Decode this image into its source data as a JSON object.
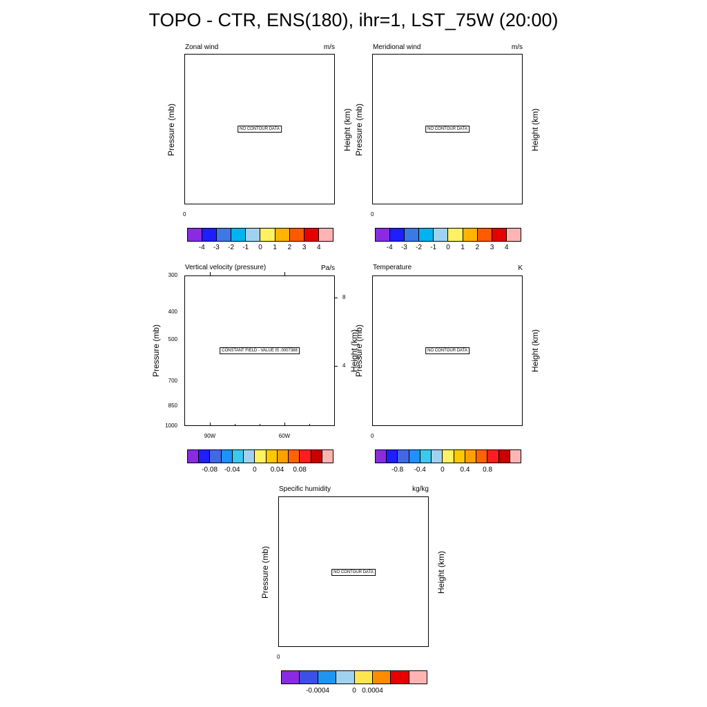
{
  "figure_title": "TOPO - CTR, ENS(180), ihr=1, LST_75W (20:00)",
  "panels": [
    {
      "title": "Zonal wind",
      "units": "m/s",
      "left_label": "Pressure (mb)",
      "right_label": "Height (km)",
      "message": "NO CONTOUR DATA",
      "x_tick": "0",
      "colorbar": {
        "colors": [
          "#8a2be2",
          "#1e1eff",
          "#3c78e6",
          "#00b4f0",
          "#a0d2f0",
          "#fff064",
          "#ffb400",
          "#ff5a00",
          "#e60000",
          "#ffb4b4"
        ],
        "labels": [
          "-4",
          "-3",
          "-2",
          "-1",
          "0",
          "1",
          "2",
          "3",
          "4"
        ]
      }
    },
    {
      "title": "Meridional wind",
      "units": "m/s",
      "left_label": "Pressure (mb)",
      "right_label": "Height (km)",
      "message": "NO CONTOUR DATA",
      "x_tick": "0",
      "colorbar": {
        "colors": [
          "#8a2be2",
          "#1e1eff",
          "#3c78e6",
          "#00b4f0",
          "#a0d2f0",
          "#fff064",
          "#ffb400",
          "#ff5a00",
          "#e60000",
          "#ffb4b4"
        ],
        "labels": [
          "-4",
          "-3",
          "-2",
          "-1",
          "0",
          "1",
          "2",
          "3",
          "4"
        ]
      }
    },
    {
      "title": "Vertical velocity (pressure)",
      "units": "Pa/s",
      "left_label": "Pressure (mb)",
      "right_label": "Height (km)",
      "message": "CONSTANT FIELD - VALUE IS .0007388",
      "y_ticks": [
        "300",
        "400",
        "500",
        "700",
        "850",
        "1000"
      ],
      "x_ticks": [
        "90W",
        "60W"
      ],
      "right_ticks": [
        "8",
        "4"
      ],
      "colorbar": {
        "colors": [
          "#8a2be2",
          "#1e1eff",
          "#4169e1",
          "#1e90ff",
          "#3cc8f0",
          "#a0d2f0",
          "#fff064",
          "#ffc800",
          "#ffa000",
          "#ff6400",
          "#ff1e1e",
          "#c80000",
          "#ffb4b4"
        ],
        "labels": [
          "-0.08",
          "-0.04",
          "0",
          "0.04",
          "0.08"
        ]
      }
    },
    {
      "title": "Temperature",
      "units": "K",
      "left_label": "Pressure (mb)",
      "right_label": "Height (km)",
      "message": "NO CONTOUR DATA",
      "x_tick": "0",
      "colorbar": {
        "colors": [
          "#8a2be2",
          "#1e1eff",
          "#4169e1",
          "#1e90ff",
          "#3cc8f0",
          "#a0d2f0",
          "#fff064",
          "#ffc800",
          "#ffa000",
          "#ff6400",
          "#ff1e1e",
          "#c80000",
          "#ffb4b4"
        ],
        "labels": [
          "-0.8",
          "-0.4",
          "0",
          "0.4",
          "0.8"
        ]
      }
    },
    {
      "title": "Specific humidity",
      "units": "kg/kg",
      "left_label": "Pressure (mb)",
      "right_label": "Height (km)",
      "message": "NO CONTOUR DATA",
      "x_tick": "0",
      "colorbar": {
        "colors": [
          "#8a2be2",
          "#3c50e6",
          "#1e96f0",
          "#a0d2f0",
          "#ffe650",
          "#ff8c00",
          "#e60000",
          "#ffb4b4"
        ],
        "labels": [
          "-0.0004",
          "0",
          "0.0004"
        ]
      }
    }
  ],
  "chart_data": [
    {
      "type": "heatmap",
      "title": "Zonal wind",
      "units": "m/s",
      "ylabel": "Pressure (mb)",
      "y2label": "Height (km)",
      "note": "NO CONTOUR DATA",
      "x": [
        "0"
      ],
      "colorbar_levels": [
        -4,
        -3,
        -2,
        -1,
        0,
        1,
        2,
        3,
        4
      ]
    },
    {
      "type": "heatmap",
      "title": "Meridional wind",
      "units": "m/s",
      "ylabel": "Pressure (mb)",
      "y2label": "Height (km)",
      "note": "NO CONTOUR DATA",
      "x": [
        "0"
      ],
      "colorbar_levels": [
        -4,
        -3,
        -2,
        -1,
        0,
        1,
        2,
        3,
        4
      ]
    },
    {
      "type": "heatmap",
      "title": "Vertical velocity (pressure)",
      "units": "Pa/s",
      "ylabel": "Pressure (mb)",
      "y2label": "Height (km)",
      "note": "CONSTANT FIELD - VALUE IS .0007388",
      "constant_value": 0.0007388,
      "y_ticks": [
        300,
        400,
        500,
        700,
        850,
        1000
      ],
      "x_ticks": [
        "90W",
        "60W"
      ],
      "y2_ticks": [
        8,
        4
      ],
      "colorbar_levels": [
        -0.08,
        -0.04,
        0,
        0.04,
        0.08
      ]
    },
    {
      "type": "heatmap",
      "title": "Temperature",
      "units": "K",
      "ylabel": "Pressure (mb)",
      "y2label": "Height (km)",
      "note": "NO CONTOUR DATA",
      "x": [
        "0"
      ],
      "colorbar_levels": [
        -0.8,
        -0.4,
        0,
        0.4,
        0.8
      ]
    },
    {
      "type": "heatmap",
      "title": "Specific humidity",
      "units": "kg/kg",
      "ylabel": "Pressure (mb)",
      "y2label": "Height (km)",
      "note": "NO CONTOUR DATA",
      "x": [
        "0"
      ],
      "colorbar_levels": [
        -0.0004,
        0,
        0.0004
      ]
    }
  ]
}
